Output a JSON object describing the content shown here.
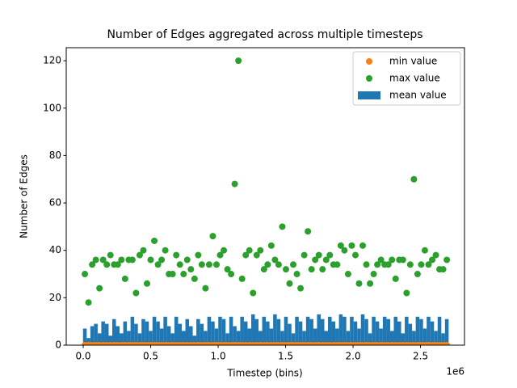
{
  "chart_data": {
    "type": "scatter",
    "title": "Number of Edges aggregated across multiple timesteps",
    "x_label": "Timestep (bins)",
    "y_label": "Number of Edges",
    "x_offset_label": "1e6",
    "x": [
      12000,
      39100,
      66200,
      93300,
      120400,
      147500,
      174600,
      201700,
      228800,
      255900,
      283000,
      310100,
      337200,
      364300,
      391400,
      418500,
      445600,
      472700,
      499800,
      526900,
      554000,
      581100,
      608200,
      635300,
      662400,
      689500,
      716600,
      743700,
      770800,
      797900,
      825000,
      852100,
      879200,
      906300,
      933400,
      960500,
      987600,
      1014700,
      1041800,
      1068900,
      1096000,
      1123100,
      1150200,
      1177300,
      1204400,
      1231500,
      1258600,
      1285700,
      1312800,
      1339900,
      1367000,
      1394100,
      1421200,
      1448300,
      1475400,
      1502500,
      1529600,
      1556700,
      1583800,
      1610900,
      1638000,
      1665100,
      1692200,
      1719300,
      1746400,
      1773500,
      1800600,
      1827700,
      1854800,
      1881900,
      1909000,
      1936100,
      1963200,
      1990300,
      2017400,
      2044500,
      2071600,
      2098700,
      2125800,
      2152900,
      2180000,
      2207100,
      2234200,
      2261300,
      2288400,
      2315500,
      2342600,
      2369700,
      2396800,
      2423900,
      2451000,
      2478100,
      2505200,
      2532300,
      2559400,
      2586500,
      2613600,
      2640700,
      2667800,
      2694900
    ],
    "series": [
      {
        "name": "min value",
        "type": "scatter",
        "color": "#ff7f0e",
        "values": [
          0,
          0,
          0,
          0,
          0,
          0,
          0,
          0,
          0,
          0,
          0,
          0,
          0,
          0,
          0,
          0,
          0,
          0,
          0,
          0,
          0,
          0,
          0,
          0,
          0,
          0,
          0,
          0,
          0,
          0,
          0,
          0,
          0,
          0,
          0,
          0,
          0,
          0,
          0,
          0,
          0,
          0,
          0,
          0,
          0,
          0,
          0,
          0,
          0,
          0,
          0,
          0,
          0,
          0,
          0,
          0,
          0,
          0,
          0,
          0,
          0,
          0,
          0,
          0,
          0,
          0,
          0,
          0,
          0,
          0,
          0,
          0,
          0,
          0,
          0,
          0,
          0,
          0,
          0,
          0,
          0,
          0,
          0,
          0,
          0,
          0,
          0,
          0,
          0,
          0,
          0,
          0,
          0,
          0,
          0,
          0,
          0,
          0,
          0,
          0
        ]
      },
      {
        "name": "max value",
        "type": "scatter",
        "color": "#2ca02c",
        "values": [
          30,
          18,
          34,
          36,
          24,
          36,
          34,
          38,
          34,
          34,
          36,
          28,
          36,
          36,
          22,
          38,
          40,
          26,
          36,
          44,
          34,
          36,
          40,
          30,
          30,
          38,
          34,
          30,
          36,
          32,
          28,
          38,
          34,
          24,
          34,
          46,
          34,
          38,
          40,
          32,
          30,
          68,
          120,
          28,
          38,
          40,
          22,
          38,
          40,
          32,
          34,
          42,
          36,
          34,
          50,
          32,
          26,
          34,
          30,
          24,
          38,
          48,
          32,
          36,
          38,
          32,
          36,
          38,
          34,
          34,
          42,
          40,
          30,
          42,
          38,
          26,
          42,
          34,
          26,
          30,
          34,
          36,
          34,
          34,
          36,
          28,
          36,
          36,
          22,
          34,
          70,
          30,
          34,
          40,
          34,
          36,
          38,
          32,
          32,
          36
        ]
      },
      {
        "name": "mean value",
        "type": "bar",
        "color": "#1f77b4",
        "bar_width": 27100,
        "values": [
          7,
          3,
          8,
          9,
          5,
          10,
          9,
          4,
          11,
          8,
          5,
          10,
          6,
          12,
          9,
          5,
          11,
          10,
          6,
          12,
          10,
          7,
          12,
          8,
          5,
          12,
          9,
          6,
          11,
          8,
          4,
          11,
          9,
          6,
          12,
          10,
          7,
          12,
          11,
          5,
          12,
          8,
          6,
          12,
          10,
          7,
          13,
          11,
          6,
          12,
          10,
          7,
          13,
          11,
          6,
          12,
          9,
          5,
          12,
          10,
          6,
          12,
          11,
          7,
          13,
          11,
          6,
          12,
          10,
          7,
          13,
          12,
          6,
          12,
          10,
          7,
          13,
          11,
          5,
          12,
          10,
          7,
          12,
          11,
          6,
          12,
          10,
          5,
          12,
          9,
          6,
          12,
          11,
          7,
          12,
          10,
          6,
          12,
          5,
          11
        ]
      }
    ],
    "xlim": [
      -126000,
      2826000
    ],
    "ylim": [
      0,
      125.5
    ],
    "xticks": [
      {
        "value": 0,
        "label": "0.0"
      },
      {
        "value": 500000,
        "label": "0.5"
      },
      {
        "value": 1000000,
        "label": "1.0"
      },
      {
        "value": 1500000,
        "label": "1.5"
      },
      {
        "value": 2000000,
        "label": "2.0"
      },
      {
        "value": 2500000,
        "label": "2.5"
      }
    ],
    "yticks": [
      0,
      20,
      40,
      60,
      80,
      100,
      120
    ],
    "legend": "upper right"
  }
}
